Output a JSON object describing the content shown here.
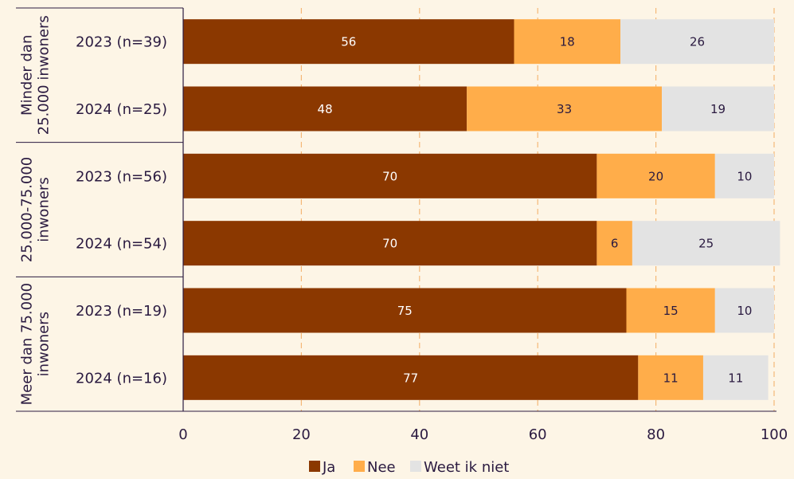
{
  "chart_data": {
    "type": "bar",
    "orientation": "horizontal",
    "stacked": true,
    "xlim": [
      0,
      100
    ],
    "x_ticks": [
      "0",
      "20",
      "40",
      "60",
      "80",
      "100"
    ],
    "grid": "vertical dashed",
    "legend_position": "bottom",
    "groups": [
      {
        "label": "Minder dan 25.000 inwoners",
        "label_lines": [
          "Minder dan",
          "25.000 inwoners"
        ]
      },
      {
        "label": "25.000-75.000 inwoners",
        "label_lines": [
          "25.000-75.000",
          "inwoners"
        ]
      },
      {
        "label": "Meer dan 75.000 inwoners",
        "label_lines": [
          "Meer dan 75.000",
          "inwoners"
        ]
      }
    ],
    "categories": [
      "2023 (n=39)",
      "2024 (n=25)",
      "2023 (n=56)",
      "2024 (n=54)",
      "2023 (n=19)",
      "2024 (n=16)"
    ],
    "series": [
      {
        "name": "Ja",
        "color": "#8b3800",
        "label_color": "#ffffff",
        "values": [
          56,
          48,
          70,
          70,
          75,
          77
        ]
      },
      {
        "name": "Nee",
        "color": "#ffad4a",
        "label_color": "#2a1a40",
        "values": [
          18,
          33,
          20,
          6,
          15,
          11
        ]
      },
      {
        "name": "Weet ik niet",
        "color": "#e3e3e3",
        "label_color": "#2a1a40",
        "values": [
          26,
          19,
          10,
          25,
          10,
          11
        ]
      }
    ]
  }
}
